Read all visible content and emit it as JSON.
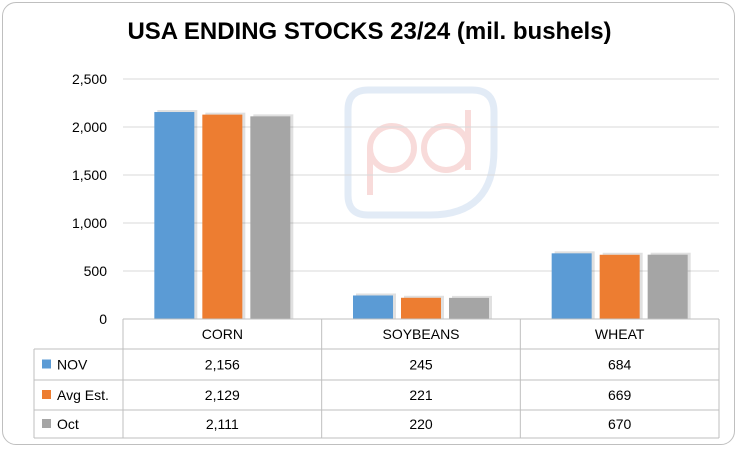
{
  "chart_data": {
    "type": "bar",
    "title": "USA ENDING STOCKS 23/24 (mil. bushels)",
    "categories": [
      "CORN",
      "SOYBEANS",
      "WHEAT"
    ],
    "series": [
      {
        "name": "NOV",
        "values": [
          2156,
          245,
          684
        ],
        "labels": [
          "2,156",
          "245",
          "684"
        ],
        "color": "#5b9bd5"
      },
      {
        "name": "Avg Est.",
        "values": [
          2129,
          221,
          669
        ],
        "labels": [
          "2,129",
          "221",
          "669"
        ],
        "color": "#ed7d31"
      },
      {
        "name": "Oct",
        "values": [
          2111,
          220,
          670
        ],
        "labels": [
          "2,111",
          "220",
          "670"
        ],
        "color": "#a5a5a5"
      }
    ],
    "ylim": [
      0,
      2500
    ],
    "yticks": [
      0,
      500,
      1000,
      1500,
      2000,
      2500
    ],
    "ytick_labels": [
      "0",
      "500",
      "1,000",
      "1,500",
      "2,000",
      "2,500"
    ],
    "grid": true,
    "legend": "data-table"
  }
}
